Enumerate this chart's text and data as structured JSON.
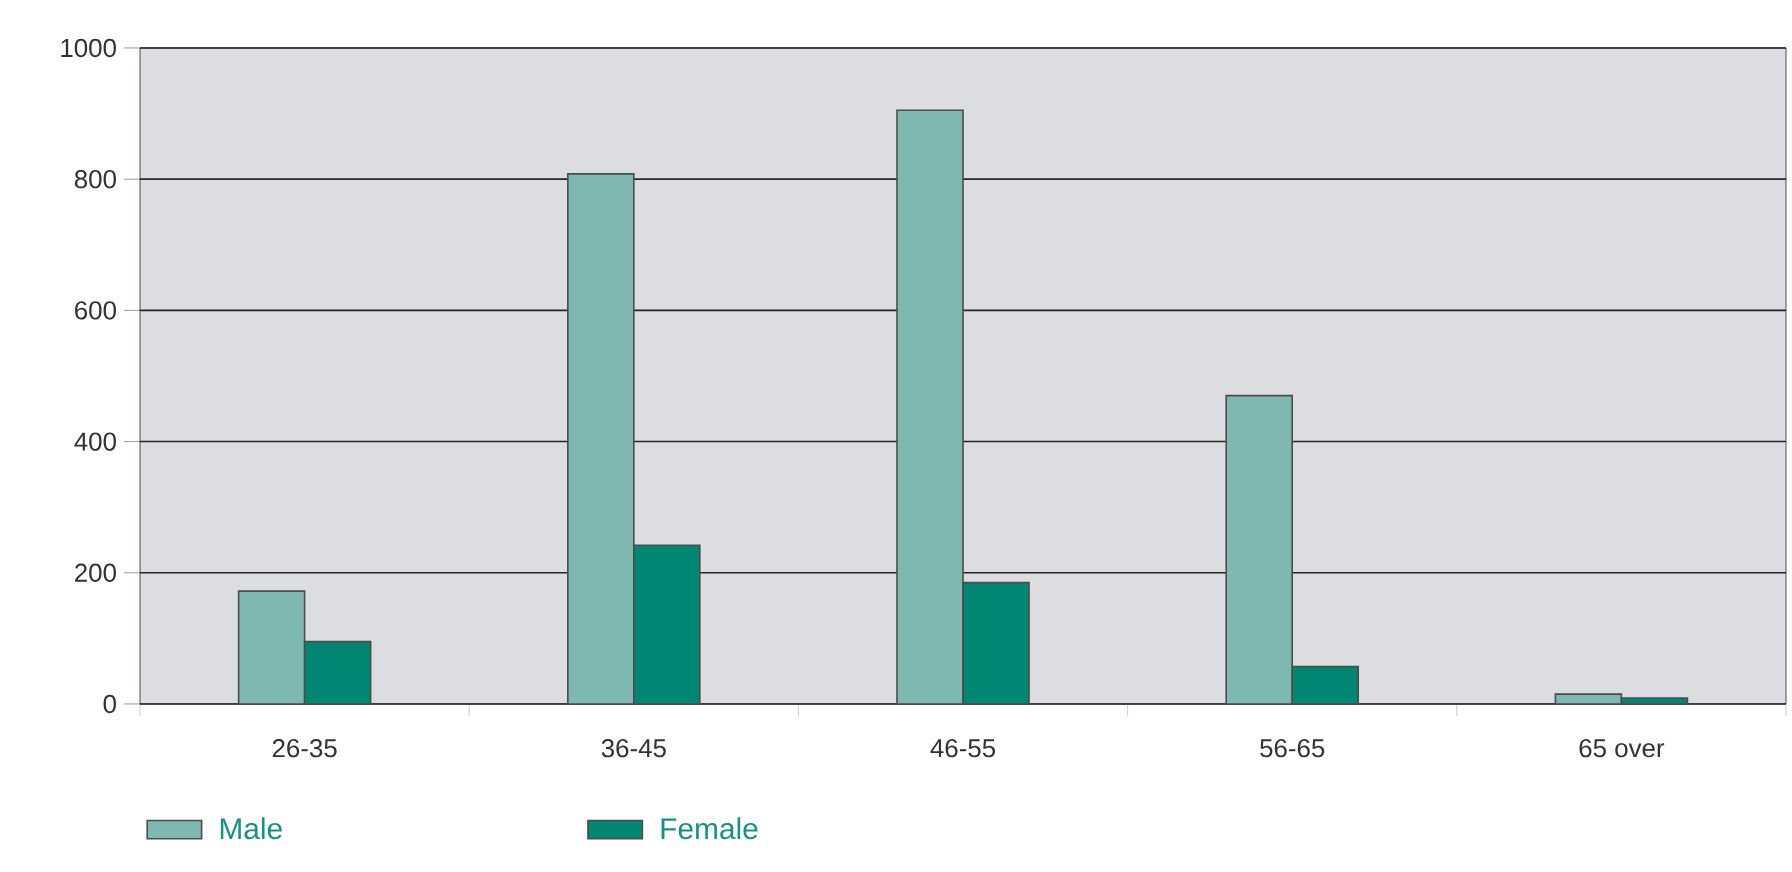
{
  "chart_data": {
    "type": "bar",
    "categories": [
      "26-35",
      "36-45",
      "46-55",
      "56-65",
      "65 over"
    ],
    "series": [
      {
        "name": "Male",
        "color": "#7fb8b0",
        "values": [
          172,
          808,
          905,
          470,
          15
        ]
      },
      {
        "name": "Female",
        "color": "#008673",
        "values": [
          95,
          242,
          185,
          57,
          9
        ]
      }
    ],
    "ylim": [
      0,
      1000
    ],
    "yticks": [
      0,
      200,
      400,
      600,
      800,
      1000
    ],
    "grid": "y",
    "legend": "bottom left"
  }
}
